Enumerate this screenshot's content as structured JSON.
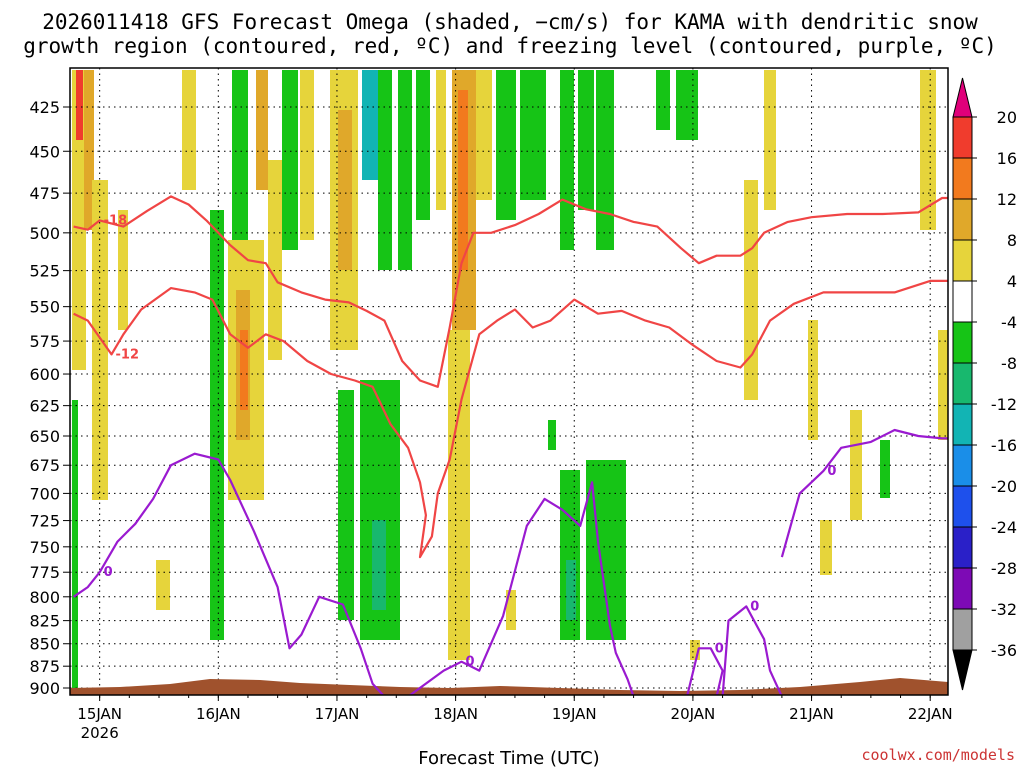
{
  "title": {
    "line1": "2026011418 GFS Forecast Omega (shaded, −cm/s) for KAMA with dendritic snow",
    "line2": "growth region (contoured, red, ºC) and freezing level (contoured, purple, ºC)"
  },
  "credit": "coolwx.com/models",
  "chart_data": {
    "type": "heatmap",
    "title": "2026011418 GFS Forecast Omega (shaded, −cm/s) for KAMA with dendritic snow growth region (contoured, red, ºC) and freezing level (contoured, purple, ºC)",
    "xlabel": "Forecast Time (UTC)",
    "ylabel": "",
    "x_ticks": [
      "15JAN",
      "16JAN",
      "17JAN",
      "18JAN",
      "19JAN",
      "20JAN",
      "21JAN",
      "22JAN"
    ],
    "x_tick_year": "2026",
    "x_range_days": [
      14.75,
      22.15
    ],
    "y_ticks": [
      425,
      450,
      475,
      500,
      525,
      550,
      575,
      600,
      625,
      650,
      675,
      700,
      725,
      750,
      775,
      800,
      825,
      850,
      875,
      900
    ],
    "y_range": [
      400,
      910
    ],
    "y_scale": "log-pressure (inverted)",
    "grid": true,
    "colorbar": {
      "levels": [
        20,
        16,
        12,
        8,
        4,
        -4,
        -8,
        -12,
        -16,
        -20,
        -24,
        -28,
        -32,
        -36
      ],
      "colors": [
        "#e0007a",
        "#f03c2d",
        "#f27a1e",
        "#e0a82a",
        "#e6d43b",
        "#ffffff",
        "#16c416",
        "#18b86e",
        "#12b4b4",
        "#1a8ee8",
        "#1e50ec",
        "#2a20c8",
        "#7d0ab5",
        "#a0a0a0",
        "#000000"
      ]
    },
    "contours": {
      "red_dendritic": {
        "color": "#f04545",
        "levels": [
          -12,
          -18
        ]
      },
      "purple_freezing": {
        "color": "#9a1ad0",
        "levels": [
          0
        ]
      }
    },
    "series": [
      {
        "name": "-18",
        "color": "#f04545",
        "points": [
          [
            14.78,
            496
          ],
          [
            14.9,
            498
          ],
          [
            15.0,
            492
          ],
          [
            15.2,
            496
          ],
          [
            15.4,
            486
          ],
          [
            15.6,
            477
          ],
          [
            15.75,
            482
          ],
          [
            15.9,
            492
          ],
          [
            16.1,
            508
          ],
          [
            16.25,
            518
          ],
          [
            16.4,
            520
          ],
          [
            16.5,
            533
          ],
          [
            16.7,
            540
          ],
          [
            16.9,
            545
          ],
          [
            17.1,
            547
          ],
          [
            17.25,
            553
          ],
          [
            17.4,
            560
          ],
          [
            17.55,
            590
          ],
          [
            17.7,
            605
          ],
          [
            17.85,
            610
          ],
          [
            17.95,
            565
          ],
          [
            18.05,
            520
          ],
          [
            18.15,
            500
          ],
          [
            18.3,
            500
          ],
          [
            18.5,
            495
          ],
          [
            18.7,
            488
          ],
          [
            18.9,
            479
          ],
          [
            19.1,
            485
          ],
          [
            19.3,
            488
          ],
          [
            19.5,
            493
          ],
          [
            19.7,
            496
          ],
          [
            19.9,
            510
          ],
          [
            20.05,
            520
          ],
          [
            20.2,
            515
          ],
          [
            20.4,
            515
          ],
          [
            20.5,
            510
          ],
          [
            20.6,
            500
          ],
          [
            20.8,
            493
          ],
          [
            21.0,
            490
          ],
          [
            21.3,
            488
          ],
          [
            21.6,
            488
          ],
          [
            21.9,
            487
          ],
          [
            22.1,
            478
          ],
          [
            22.15,
            478
          ]
        ]
      },
      {
        "name": "-12",
        "color": "#f04545",
        "points": [
          [
            14.78,
            555
          ],
          [
            14.9,
            560
          ],
          [
            15.1,
            585
          ],
          [
            15.2,
            570
          ],
          [
            15.35,
            552
          ],
          [
            15.6,
            537
          ],
          [
            15.8,
            540
          ],
          [
            15.95,
            545
          ],
          [
            16.1,
            570
          ],
          [
            16.25,
            580
          ],
          [
            16.4,
            570
          ],
          [
            16.55,
            575
          ],
          [
            16.75,
            590
          ],
          [
            16.95,
            600
          ],
          [
            17.15,
            605
          ],
          [
            17.3,
            610
          ],
          [
            17.45,
            640
          ],
          [
            17.6,
            660
          ],
          [
            17.7,
            690
          ],
          [
            17.75,
            720
          ],
          [
            17.7,
            760
          ],
          [
            17.8,
            740
          ],
          [
            17.85,
            700
          ],
          [
            17.95,
            670
          ],
          [
            18.05,
            620
          ],
          [
            18.2,
            570
          ],
          [
            18.35,
            560
          ],
          [
            18.5,
            552
          ],
          [
            18.65,
            565
          ],
          [
            18.8,
            560
          ],
          [
            19.0,
            545
          ],
          [
            19.2,
            555
          ],
          [
            19.4,
            553
          ],
          [
            19.6,
            560
          ],
          [
            19.8,
            565
          ],
          [
            20.0,
            578
          ],
          [
            20.2,
            590
          ],
          [
            20.4,
            595
          ],
          [
            20.5,
            585
          ],
          [
            20.65,
            560
          ],
          [
            20.85,
            548
          ],
          [
            21.1,
            540
          ],
          [
            21.4,
            540
          ],
          [
            21.7,
            540
          ],
          [
            22.0,
            532
          ],
          [
            22.15,
            532
          ]
        ]
      },
      {
        "name": "0",
        "color": "#9a1ad0",
        "points": [
          [
            14.78,
            800
          ],
          [
            14.9,
            790
          ],
          [
            15.0,
            775
          ],
          [
            15.15,
            745
          ],
          [
            15.3,
            728
          ],
          [
            15.45,
            705
          ],
          [
            15.6,
            675
          ],
          [
            15.8,
            665
          ],
          [
            16.0,
            670
          ],
          [
            16.1,
            688
          ],
          [
            16.3,
            735
          ],
          [
            16.5,
            790
          ],
          [
            16.6,
            855
          ],
          [
            16.7,
            840
          ],
          [
            16.85,
            800
          ],
          [
            17.05,
            808
          ],
          [
            17.2,
            855
          ],
          [
            17.3,
            895
          ],
          [
            17.4,
            910
          ]
        ]
      },
      {
        "name": "0",
        "color": "#9a1ad0",
        "points": [
          [
            17.6,
            910
          ],
          [
            17.9,
            880
          ],
          [
            18.05,
            870
          ],
          [
            18.2,
            880
          ],
          [
            18.4,
            820
          ],
          [
            18.6,
            730
          ],
          [
            18.75,
            705
          ],
          [
            18.9,
            715
          ],
          [
            19.05,
            730
          ],
          [
            19.15,
            690
          ],
          [
            19.2,
            745
          ],
          [
            19.3,
            830
          ],
          [
            19.35,
            860
          ],
          [
            19.45,
            890
          ],
          [
            19.5,
            910
          ]
        ]
      },
      {
        "name": "0",
        "color": "#9a1ad0",
        "points": [
          [
            19.95,
            910
          ],
          [
            20.05,
            855
          ],
          [
            20.15,
            855
          ],
          [
            20.25,
            880
          ],
          [
            20.2,
            910
          ]
        ]
      },
      {
        "name": "0",
        "color": "#9a1ad0",
        "points": [
          [
            20.25,
            910
          ],
          [
            20.3,
            825
          ],
          [
            20.45,
            810
          ],
          [
            20.6,
            845
          ],
          [
            20.65,
            880
          ],
          [
            20.75,
            910
          ]
        ]
      },
      {
        "name": "0",
        "color": "#9a1ad0",
        "points": [
          [
            20.75,
            760
          ],
          [
            20.9,
            700
          ],
          [
            21.1,
            680
          ],
          [
            21.25,
            660
          ],
          [
            21.5,
            655
          ],
          [
            21.7,
            645
          ],
          [
            21.9,
            650
          ],
          [
            22.1,
            652
          ],
          [
            22.15,
            652
          ]
        ]
      }
    ]
  }
}
